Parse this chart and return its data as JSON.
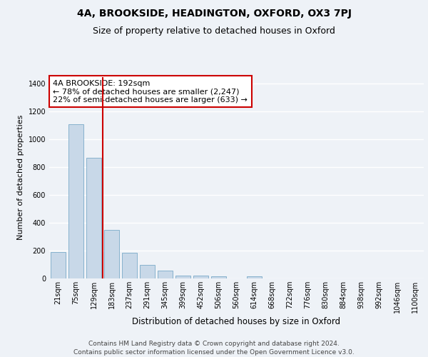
{
  "title1": "4A, BROOKSIDE, HEADINGTON, OXFORD, OX3 7PJ",
  "title2": "Size of property relative to detached houses in Oxford",
  "xlabel": "Distribution of detached houses by size in Oxford",
  "ylabel": "Number of detached properties",
  "categories": [
    "21sqm",
    "75sqm",
    "129sqm",
    "183sqm",
    "237sqm",
    "291sqm",
    "345sqm",
    "399sqm",
    "452sqm",
    "506sqm",
    "560sqm",
    "614sqm",
    "668sqm",
    "722sqm",
    "776sqm",
    "830sqm",
    "884sqm",
    "938sqm",
    "992sqm",
    "1046sqm",
    "1100sqm"
  ],
  "values": [
    190,
    1110,
    865,
    350,
    183,
    95,
    55,
    22,
    22,
    17,
    0,
    14,
    0,
    0,
    0,
    0,
    0,
    0,
    0,
    0,
    0
  ],
  "bar_color": "#c8d8e8",
  "bar_edge_color": "#7aaac8",
  "vline_x": 2.5,
  "vline_color": "#cc0000",
  "annotation_text": "4A BROOKSIDE: 192sqm\n← 78% of detached houses are smaller (2,247)\n22% of semi-detached houses are larger (633) →",
  "annotation_box_color": "#ffffff",
  "annotation_box_edge": "#cc0000",
  "ylim": [
    0,
    1450
  ],
  "yticks": [
    0,
    200,
    400,
    600,
    800,
    1000,
    1200,
    1400
  ],
  "background_color": "#eef2f7",
  "grid_color": "#ffffff",
  "footer": "Contains HM Land Registry data © Crown copyright and database right 2024.\nContains public sector information licensed under the Open Government Licence v3.0.",
  "title1_fontsize": 10,
  "title2_fontsize": 9,
  "xlabel_fontsize": 8.5,
  "ylabel_fontsize": 8,
  "tick_fontsize": 7,
  "annotation_fontsize": 8,
  "footer_fontsize": 6.5
}
